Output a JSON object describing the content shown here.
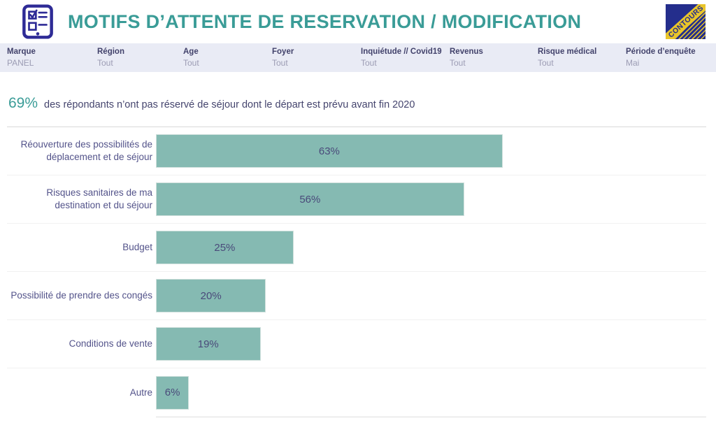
{
  "header": {
    "title": "MOTIFS D’ATTENTE DE RESERVATION / MODIFICATION",
    "icon": "clipboard-checklist-icon",
    "logo_text": "CONTOURS",
    "accent_color": "#3a9c97",
    "icon_color": "#2e2b96",
    "logo_bg_color": "#242e8c",
    "logo_stripe_color": "#e9c52a"
  },
  "filter_bar": {
    "filters": [
      {
        "label": "Marque",
        "value": "PANEL"
      },
      {
        "label": "Région",
        "value": "Tout"
      },
      {
        "label": "Age",
        "value": "Tout"
      },
      {
        "label": "Foyer",
        "value": "Tout"
      },
      {
        "label": "Inquiétude // Covid19",
        "value": "Tout"
      },
      {
        "label": "Revenus",
        "value": "Tout"
      },
      {
        "label": "Risque médical",
        "value": "Tout"
      },
      {
        "label": "Période d’enquête",
        "value": "Mai"
      }
    ]
  },
  "highlight": {
    "value": "69%",
    "text": "des répondants n’ont pas réservé de séjour dont le départ est prévu avant fin 2020"
  },
  "chart_data": {
    "type": "bar",
    "orientation": "horizontal",
    "title": "",
    "xlabel": "",
    "ylabel": "",
    "xlim": [
      0,
      100
    ],
    "legend": "none",
    "grid": "row-separators-only",
    "bar_color": "#85bab2",
    "categories": [
      "Réouverture des possibilités de\ndéplacement et de séjour",
      "Risques sanitaires de ma\ndestination et du séjour",
      "Budget",
      "Possibilité de prendre des congés",
      "Conditions de vente",
      "Autre"
    ],
    "values": [
      63,
      56,
      25,
      20,
      19,
      6
    ],
    "value_labels": [
      "63%",
      "56%",
      "25%",
      "20%",
      "19%",
      "6%"
    ]
  }
}
